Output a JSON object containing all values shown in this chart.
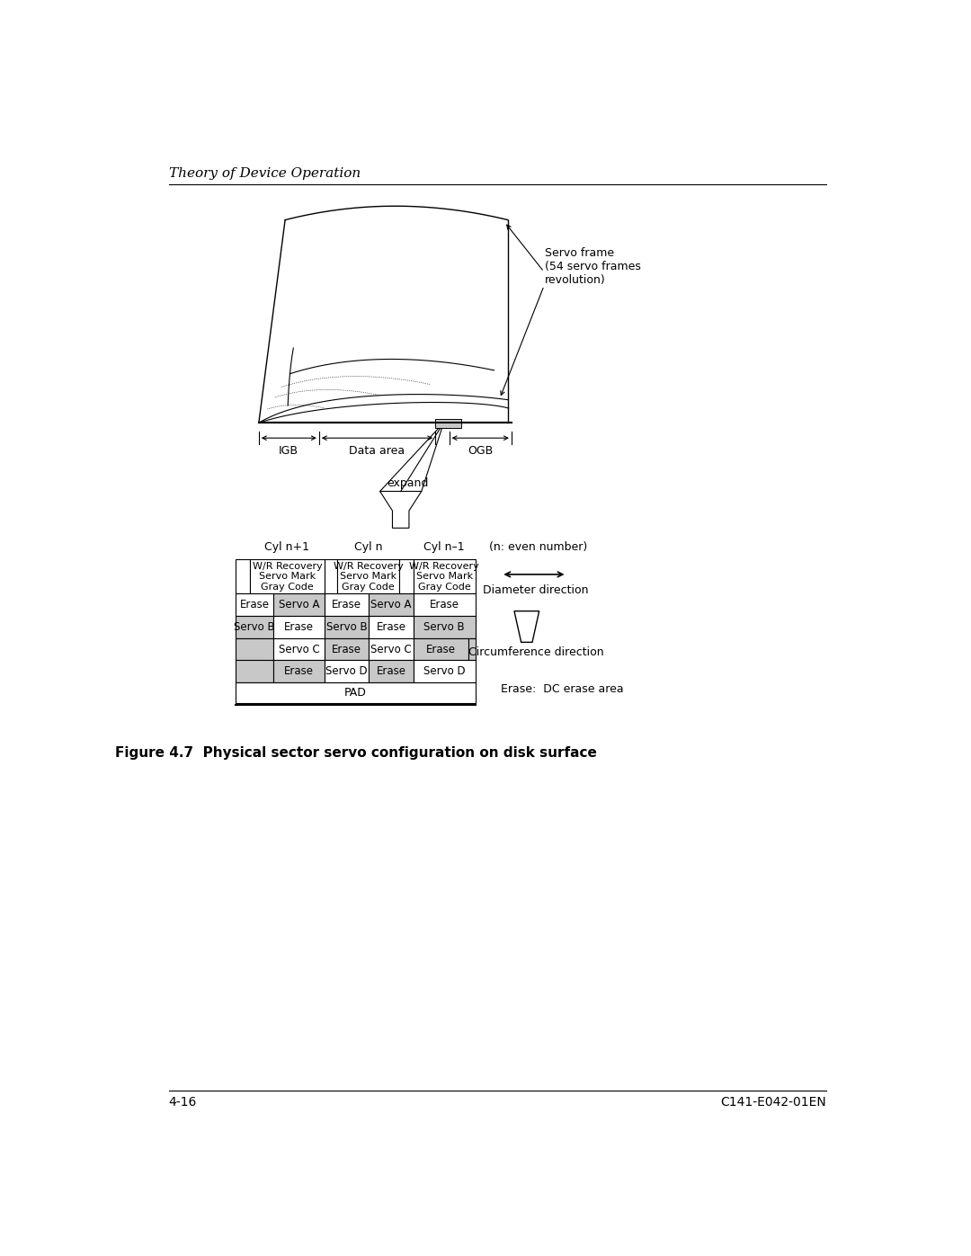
{
  "title_header": "Theory of Device Operation",
  "figure_caption": "Figure 4.7  Physical sector servo configuration on disk surface",
  "page_left": "4-16",
  "page_right": "C141-E042-01EN",
  "servo_frame_label": "Servo frame\n(54 servo frames\nrevolution)",
  "igb_label": "IGB",
  "data_area_label": "Data area",
  "ogb_label": "OGB",
  "expand_label": "expand",
  "cyl_labels": [
    "Cyl n+1",
    "Cyl n",
    "Cyl n–1"
  ],
  "n_note": "(n: even number)",
  "wr_recovery_label": "W/R Recovery\nServo Mark\nGray Code",
  "diameter_label": "Diameter direction",
  "circumference_label": "Circumference direction",
  "erase_note": "Erase:  DC erase area",
  "pad_label": "PAD",
  "bg_color": "#ffffff",
  "gray_color": "#c8c8c8",
  "line_color": "#000000"
}
